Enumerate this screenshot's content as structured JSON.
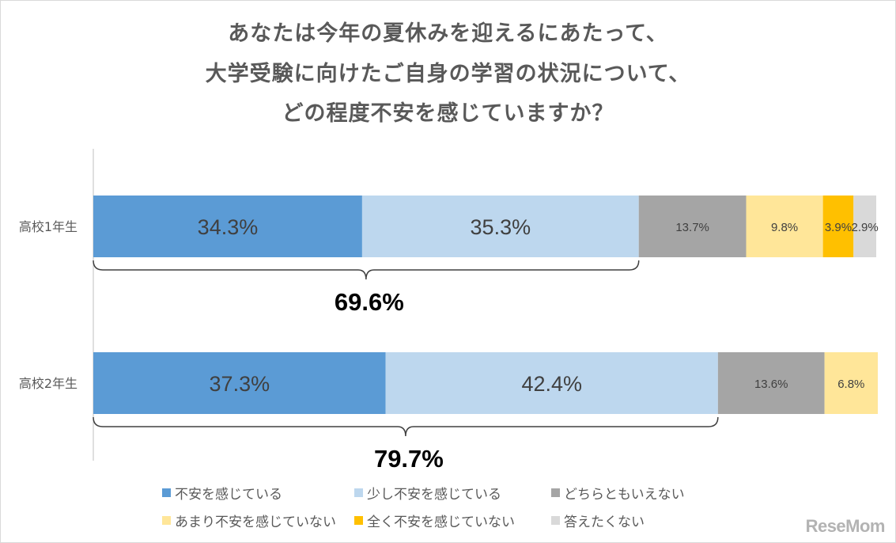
{
  "chart_data": {
    "type": "bar",
    "orientation": "horizontal-stacked-100",
    "title_lines": [
      "あなたは今年の夏休みを迎えるにあたって、",
      "大学受験に向けたご自身の学習の状況について、",
      "どの程度不安を感じていますか？"
    ],
    "categories": [
      "高校1年生",
      "高校2年生"
    ],
    "series": [
      {
        "name": "不安を感じている",
        "color": "#5b9bd5",
        "values": [
          34.3,
          37.3
        ]
      },
      {
        "name": "少し不安を感じている",
        "color": "#bdd7ee",
        "values": [
          35.3,
          42.4
        ]
      },
      {
        "name": "どちらともいえない",
        "color": "#a5a5a5",
        "values": [
          13.7,
          13.6
        ]
      },
      {
        "name": "あまり不安を感じていない",
        "color": "#ffe699",
        "values": [
          9.8,
          6.8
        ]
      },
      {
        "name": "全く不安を感じていない",
        "color": "#ffc000",
        "values": [
          3.9,
          0
        ]
      },
      {
        "name": "答えたくない",
        "color": "#d9d9d9",
        "values": [
          2.9,
          0
        ]
      }
    ],
    "value_labels": [
      [
        "34.3%",
        "35.3%",
        "13.7%",
        "9.8%",
        "3.9%",
        "2.9%"
      ],
      [
        "37.3%",
        "42.4%",
        "13.6%",
        "6.8%",
        "",
        ""
      ]
    ],
    "brace_totals": [
      "69.6%",
      "79.7%"
    ],
    "legend_position": "bottom",
    "xlim": [
      0,
      100
    ]
  },
  "watermark": "ReseMom"
}
